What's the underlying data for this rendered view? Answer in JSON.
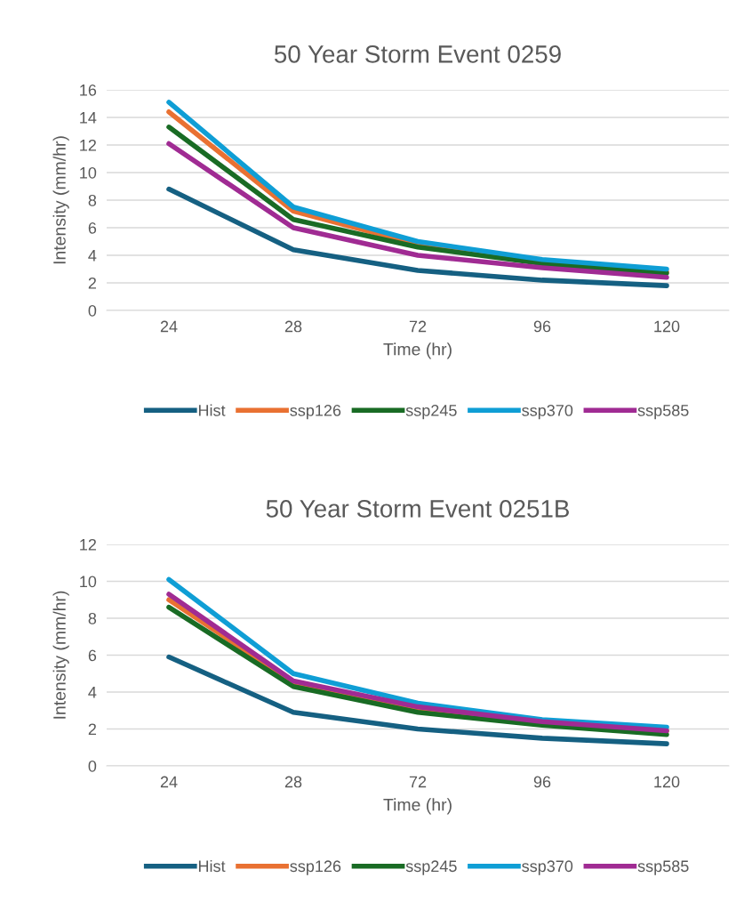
{
  "chart_data": [
    {
      "type": "line",
      "title": "50 Year Storm Event 0259",
      "xlabel": "Time (hr)",
      "ylabel": "Intensity (mm/hr)",
      "categories": [
        "24",
        "28",
        "72",
        "96",
        "120"
      ],
      "ylim": [
        0,
        16
      ],
      "yticks": [
        0,
        2,
        4,
        6,
        8,
        10,
        12,
        14,
        16
      ],
      "grid": "y",
      "legend": "bottom",
      "marker": "none",
      "line_style": "solid",
      "series": [
        {
          "name": "Hist",
          "color": "#156082",
          "values": [
            8.8,
            4.4,
            2.9,
            2.2,
            1.8
          ]
        },
        {
          "name": "ssp126",
          "color": "#e97132",
          "values": [
            14.4,
            7.2,
            4.8,
            3.5,
            2.8
          ]
        },
        {
          "name": "ssp245",
          "color": "#196b24",
          "values": [
            13.3,
            6.6,
            4.6,
            3.4,
            2.7
          ]
        },
        {
          "name": "ssp370",
          "color": "#0f9ed5",
          "values": [
            15.1,
            7.5,
            5.0,
            3.7,
            3.0
          ]
        },
        {
          "name": "ssp585",
          "color": "#a02b93",
          "values": [
            12.1,
            6.0,
            4.0,
            3.1,
            2.4
          ]
        }
      ]
    },
    {
      "type": "line",
      "title": "50 Year Storm Event 0251B",
      "xlabel": "Time (hr)",
      "ylabel": "Intensity (mm/hr)",
      "categories": [
        "24",
        "28",
        "72",
        "96",
        "120"
      ],
      "ylim": [
        0,
        12
      ],
      "yticks": [
        0,
        2,
        4,
        6,
        8,
        10,
        12
      ],
      "grid": "y",
      "legend": "bottom",
      "marker": "none",
      "line_style": "solid",
      "series": [
        {
          "name": "Hist",
          "color": "#156082",
          "values": [
            5.9,
            2.9,
            2.0,
            1.5,
            1.2
          ]
        },
        {
          "name": "ssp126",
          "color": "#e97132",
          "values": [
            9.0,
            4.5,
            3.1,
            2.3,
            1.9
          ]
        },
        {
          "name": "ssp245",
          "color": "#196b24",
          "values": [
            8.6,
            4.3,
            2.9,
            2.2,
            1.7
          ]
        },
        {
          "name": "ssp370",
          "color": "#0f9ed5",
          "values": [
            10.1,
            5.0,
            3.4,
            2.5,
            2.1
          ]
        },
        {
          "name": "ssp585",
          "color": "#a02b93",
          "values": [
            9.3,
            4.6,
            3.2,
            2.4,
            1.9
          ]
        }
      ]
    }
  ]
}
